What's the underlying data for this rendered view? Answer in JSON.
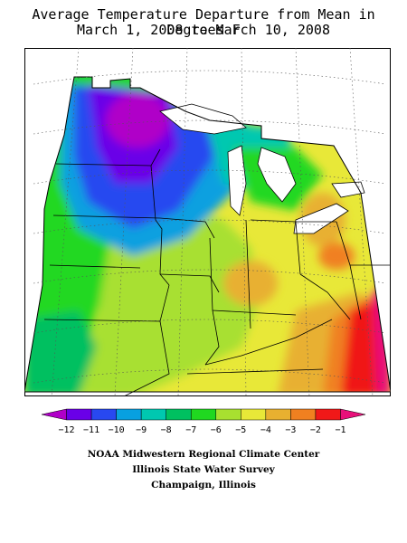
{
  "title_line1": "Average Temperature Departure from Mean in Degrees F",
  "title_line2": "March 1, 2008 to March 10, 2008",
  "legend": {
    "ticks": [
      "−12",
      "−11",
      "−10",
      "−9",
      "−8",
      "−7",
      "−6",
      "−5",
      "−4",
      "−3",
      "−2",
      "−1"
    ],
    "colors": [
      "#b000c8",
      "#6a00e8",
      "#2848f0",
      "#08a0e0",
      "#00c8b0",
      "#00c060",
      "#20d820",
      "#a8e030",
      "#e8e838",
      "#e8b030",
      "#f08020",
      "#f01818",
      "#e8107a"
    ]
  },
  "footer": {
    "line1": "NOAA Midwestern Regional Climate Center",
    "line2": "Illinois State Water Survey",
    "line3": "Champaign, Illinois"
  }
}
